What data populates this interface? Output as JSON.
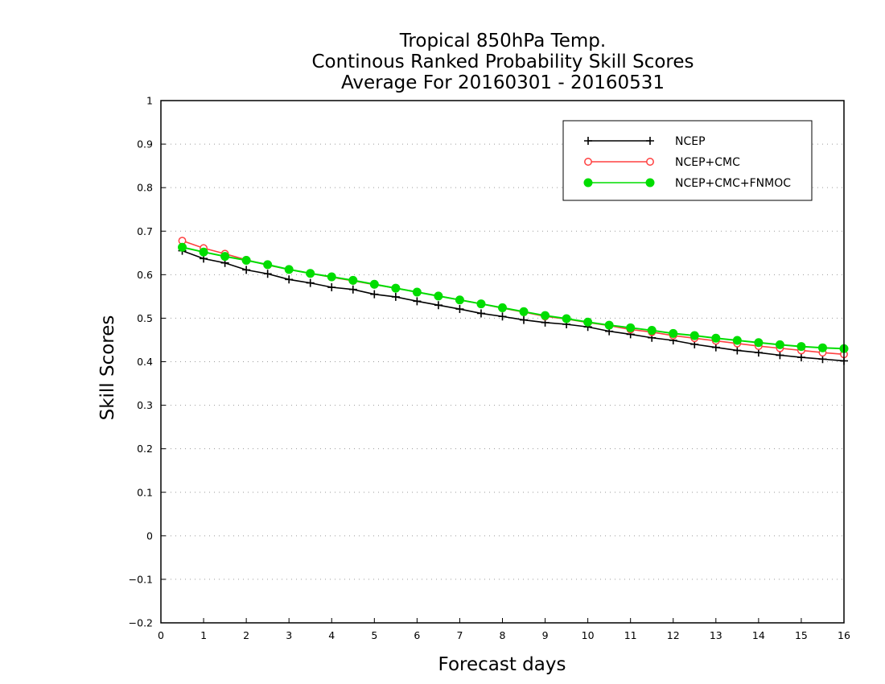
{
  "chart_data": {
    "type": "line",
    "title": "Tropical 850hPa Temp.",
    "subtitle": "Continous Ranked Probability Skill Scores",
    "subtitle2": "Average For 20160301 - 20160531",
    "xlabel": "Forecast days",
    "ylabel": "Skill Scores",
    "xlim": [
      0,
      16
    ],
    "ylim": [
      -0.2,
      1
    ],
    "xticks": [
      "0",
      "1",
      "2",
      "3",
      "4",
      "5",
      "6",
      "7",
      "8",
      "9",
      "10",
      "11",
      "12",
      "13",
      "14",
      "15",
      "16"
    ],
    "yticks": [
      "-0.2",
      "-0.1",
      "0",
      "0.1",
      "0.2",
      "0.3",
      "0.4",
      "0.5",
      "0.6",
      "0.7",
      "0.8",
      "0.9",
      "1"
    ],
    "grid": "horizontal-dotted",
    "legend_position": "top-right",
    "x": [
      0.5,
      1,
      1.5,
      2,
      2.5,
      3,
      3.5,
      4,
      4.5,
      5,
      5.5,
      6,
      6.5,
      7,
      7.5,
      8,
      8.5,
      9,
      9.5,
      10,
      10.5,
      11,
      11.5,
      12,
      12.5,
      13,
      13.5,
      14,
      14.5,
      15,
      15.5,
      16
    ],
    "series": [
      {
        "name": "NCEP",
        "color": "#000000",
        "marker": "plus",
        "values": [
          0.655,
          0.637,
          0.627,
          0.611,
          0.602,
          0.589,
          0.581,
          0.571,
          0.566,
          0.555,
          0.549,
          0.539,
          0.53,
          0.521,
          0.511,
          0.504,
          0.496,
          0.49,
          0.486,
          0.48,
          0.47,
          0.463,
          0.455,
          0.449,
          0.44,
          0.433,
          0.426,
          0.421,
          0.415,
          0.41,
          0.406,
          0.402
        ]
      },
      {
        "name": "NCEP+CMC",
        "color": "#ff4040",
        "marker": "open-circle",
        "values": [
          0.678,
          0.661,
          0.648,
          0.634,
          0.622,
          0.612,
          0.603,
          0.594,
          0.586,
          0.577,
          0.569,
          0.56,
          0.551,
          0.542,
          0.533,
          0.523,
          0.514,
          0.504,
          0.498,
          0.49,
          0.483,
          0.474,
          0.468,
          0.46,
          0.454,
          0.448,
          0.442,
          0.436,
          0.431,
          0.426,
          0.421,
          0.417
        ]
      },
      {
        "name": "NCEP+CMC+FNMOC",
        "color": "#00dd00",
        "marker": "filled-circle",
        "values": [
          0.663,
          0.652,
          0.642,
          0.633,
          0.623,
          0.612,
          0.603,
          0.595,
          0.587,
          0.578,
          0.569,
          0.56,
          0.551,
          0.542,
          0.533,
          0.524,
          0.515,
          0.506,
          0.499,
          0.491,
          0.484,
          0.478,
          0.472,
          0.465,
          0.46,
          0.454,
          0.449,
          0.444,
          0.439,
          0.435,
          0.432,
          0.43
        ]
      }
    ]
  }
}
